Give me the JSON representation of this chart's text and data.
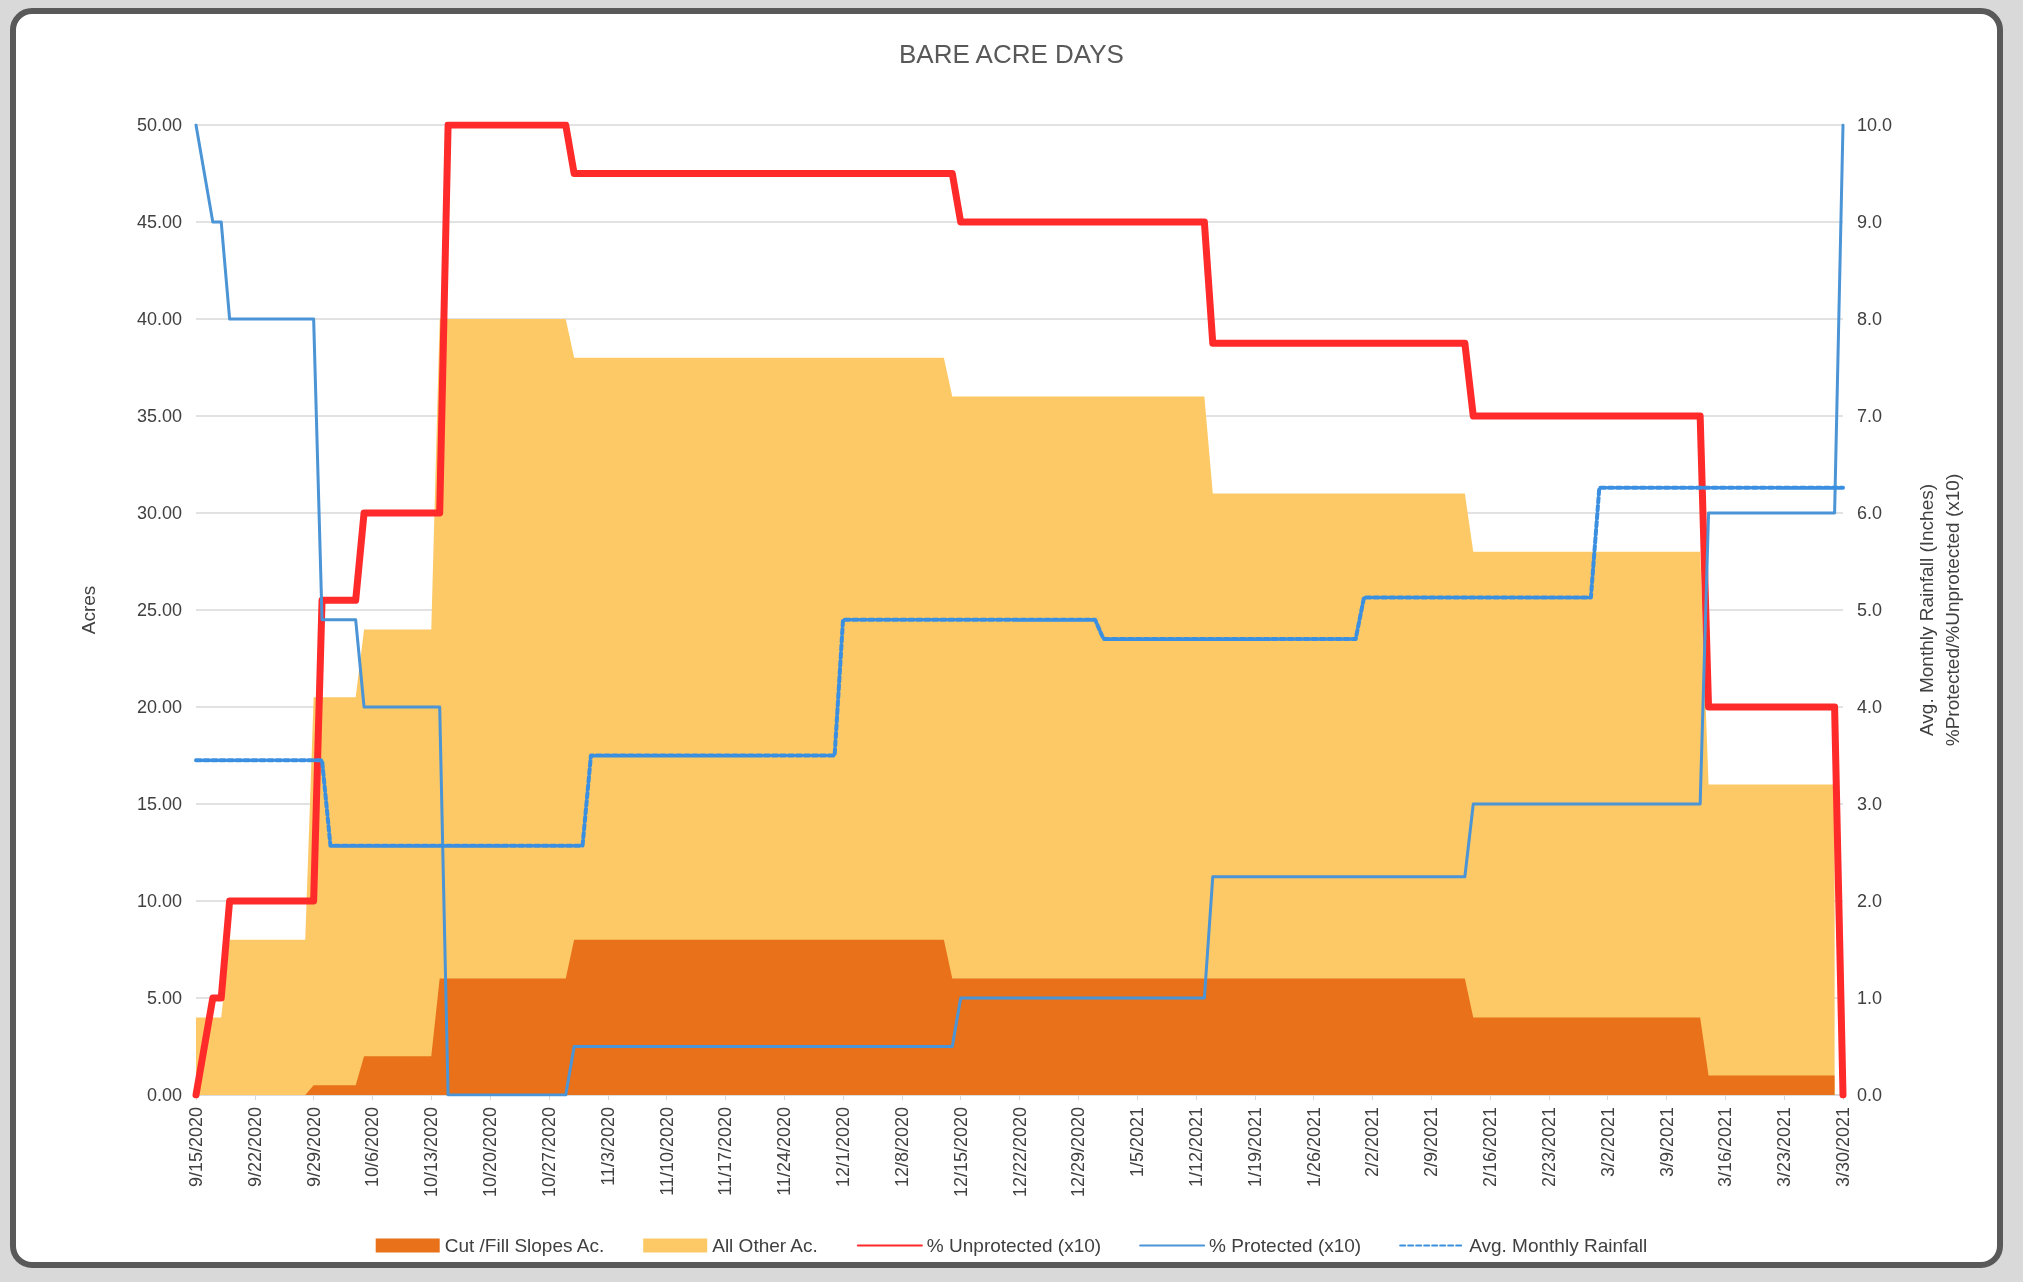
{
  "chart_data": {
    "type": "area",
    "title": "BARE ACRE DAYS",
    "ylabel": "Acres",
    "y2label": "Avg. Monthly Rainfall (Inches)\n%Protected/%Unprotected (x10)",
    "stacked": true,
    "grid": "y",
    "legend": "bottom",
    "marker": "none",
    "x": [
      "2020-09-15",
      "2020-09-18",
      "2020-09-19",
      "2020-09-28",
      "2020-09-29",
      "2020-10-04",
      "2020-10-05",
      "2020-10-13",
      "2020-10-14",
      "2020-10-29",
      "2020-10-30",
      "2020-12-13",
      "2020-12-14",
      "2021-01-13",
      "2021-01-14",
      "2021-02-13",
      "2021-02-14",
      "2021-03-13",
      "2021-03-14",
      "2021-03-29"
    ],
    "series": [
      {
        "name": "Cut /Fill Slopes Ac.",
        "color": "#e8711a",
        "values": [
          0,
          0,
          0,
          0,
          0.5,
          0.5,
          2,
          2,
          6,
          6,
          8,
          8,
          6,
          6,
          6,
          6,
          4,
          4,
          1,
          1
        ]
      },
      {
        "name": "All Other Ac.",
        "color": "#fcc966",
        "values": [
          4,
          4,
          8,
          8,
          20,
          20,
          22,
          22,
          34,
          34,
          30,
          30,
          30,
          30,
          25,
          25,
          24,
          24,
          15,
          15
        ]
      },
      {
        "name": "% Unprotected (x10)",
        "type": "line",
        "axis": "y2",
        "color": "#ff2a2a",
        "line_style": "solid",
        "x": [
          "2020-09-15",
          "2020-09-17",
          "2020-09-18",
          "2020-09-19",
          "2020-09-29",
          "2020-09-30",
          "2020-10-04",
          "2020-10-05",
          "2020-10-14",
          "2020-10-15",
          "2020-10-29",
          "2020-10-30",
          "2020-12-14",
          "2020-12-15",
          "2021-01-13",
          "2021-01-14",
          "2021-02-13",
          "2021-02-14",
          "2021-03-13",
          "2021-03-14",
          "2021-03-29",
          "2021-03-30"
        ],
        "values": [
          0,
          1,
          1,
          2,
          2,
          5.1,
          5.1,
          6,
          6,
          10,
          10,
          9.5,
          9.5,
          9,
          9,
          7.75,
          7.75,
          7,
          7,
          4,
          4,
          0
        ]
      },
      {
        "name": "% Protected (x10)",
        "type": "line",
        "axis": "y2",
        "color": "#4b94d6",
        "line_style": "solid",
        "x": [
          "2020-09-15",
          "2020-09-17",
          "2020-09-18",
          "2020-09-19",
          "2020-09-29",
          "2020-09-30",
          "2020-10-04",
          "2020-10-05",
          "2020-10-14",
          "2020-10-15",
          "2020-10-29",
          "2020-10-30",
          "2020-12-14",
          "2020-12-15",
          "2021-01-13",
          "2021-01-14",
          "2021-02-13",
          "2021-02-14",
          "2021-03-13",
          "2021-03-14",
          "2021-03-29",
          "2021-03-30"
        ],
        "values": [
          10,
          9,
          9,
          8,
          8,
          4.9,
          4.9,
          4,
          4,
          0,
          0,
          0.5,
          0.5,
          1,
          1,
          2.25,
          2.25,
          3,
          3,
          6,
          6,
          10
        ]
      },
      {
        "name": "Avg. Monthly Rainfall",
        "type": "line",
        "axis": "y2",
        "color": "#3a8fe0",
        "line_style": "dashed",
        "x": [
          "2020-09-15",
          "2020-09-30",
          "2020-10-01",
          "2020-10-31",
          "2020-11-01",
          "2020-11-30",
          "2020-12-01",
          "2020-12-31",
          "2021-01-01",
          "2021-01-31",
          "2021-02-01",
          "2021-02-28",
          "2021-03-01",
          "2021-03-30"
        ],
        "values": [
          3.45,
          3.45,
          2.57,
          2.57,
          3.5,
          3.5,
          4.9,
          4.9,
          4.7,
          4.7,
          5.13,
          5.13,
          6.26,
          6.26
        ]
      }
    ],
    "xlim": [
      "2020-09-15",
      "2021-03-30"
    ],
    "xticks": [
      {
        "value": "2020-09-15",
        "label": "9/15/2020"
      },
      {
        "value": "2020-09-22",
        "label": "9/22/2020"
      },
      {
        "value": "2020-09-29",
        "label": "9/29/2020"
      },
      {
        "value": "2020-10-06",
        "label": "10/6/2020"
      },
      {
        "value": "2020-10-13",
        "label": "10/13/2020"
      },
      {
        "value": "2020-10-20",
        "label": "10/20/2020"
      },
      {
        "value": "2020-10-27",
        "label": "10/27/2020"
      },
      {
        "value": "2020-11-03",
        "label": "11/3/2020"
      },
      {
        "value": "2020-11-10",
        "label": "11/10/2020"
      },
      {
        "value": "2020-11-17",
        "label": "11/17/2020"
      },
      {
        "value": "2020-11-24",
        "label": "11/24/2020"
      },
      {
        "value": "2020-12-01",
        "label": "12/1/2020"
      },
      {
        "value": "2020-12-08",
        "label": "12/8/2020"
      },
      {
        "value": "2020-12-15",
        "label": "12/15/2020"
      },
      {
        "value": "2020-12-22",
        "label": "12/22/2020"
      },
      {
        "value": "2020-12-29",
        "label": "12/29/2020"
      },
      {
        "value": "2021-01-05",
        "label": "1/5/2021"
      },
      {
        "value": "2021-01-12",
        "label": "1/12/2021"
      },
      {
        "value": "2021-01-19",
        "label": "1/19/2021"
      },
      {
        "value": "2021-01-26",
        "label": "1/26/2021"
      },
      {
        "value": "2021-02-02",
        "label": "2/2/2021"
      },
      {
        "value": "2021-02-09",
        "label": "2/9/2021"
      },
      {
        "value": "2021-02-16",
        "label": "2/16/2021"
      },
      {
        "value": "2021-02-23",
        "label": "2/23/2021"
      },
      {
        "value": "2021-03-02",
        "label": "3/2/2021"
      },
      {
        "value": "2021-03-09",
        "label": "3/9/2021"
      },
      {
        "value": "2021-03-16",
        "label": "3/16/2021"
      },
      {
        "value": "2021-03-23",
        "label": "3/23/2021"
      },
      {
        "value": "2021-03-30",
        "label": "3/30/2021"
      }
    ],
    "ylim": [
      0,
      50
    ],
    "yticks": [
      {
        "value": 0,
        "label": "0.00"
      },
      {
        "value": 5,
        "label": "5.00"
      },
      {
        "value": 10,
        "label": "10.00"
      },
      {
        "value": 15,
        "label": "15.00"
      },
      {
        "value": 20,
        "label": "20.00"
      },
      {
        "value": 25,
        "label": "25.00"
      },
      {
        "value": 30,
        "label": "30.00"
      },
      {
        "value": 35,
        "label": "35.00"
      },
      {
        "value": 40,
        "label": "40.00"
      },
      {
        "value": 45,
        "label": "45.00"
      },
      {
        "value": 50,
        "label": "50.00"
      }
    ],
    "y2lim": [
      0,
      10
    ],
    "y2ticks": [
      {
        "value": 0,
        "label": "0.0"
      },
      {
        "value": 1,
        "label": "1.0"
      },
      {
        "value": 2,
        "label": "2.0"
      },
      {
        "value": 3,
        "label": "3.0"
      },
      {
        "value": 4,
        "label": "4.0"
      },
      {
        "value": 5,
        "label": "5.0"
      },
      {
        "value": 6,
        "label": "6.0"
      },
      {
        "value": 7,
        "label": "7.0"
      },
      {
        "value": 8,
        "label": "8.0"
      },
      {
        "value": 9,
        "label": "9.0"
      },
      {
        "value": 10,
        "label": "10.0"
      }
    ]
  }
}
